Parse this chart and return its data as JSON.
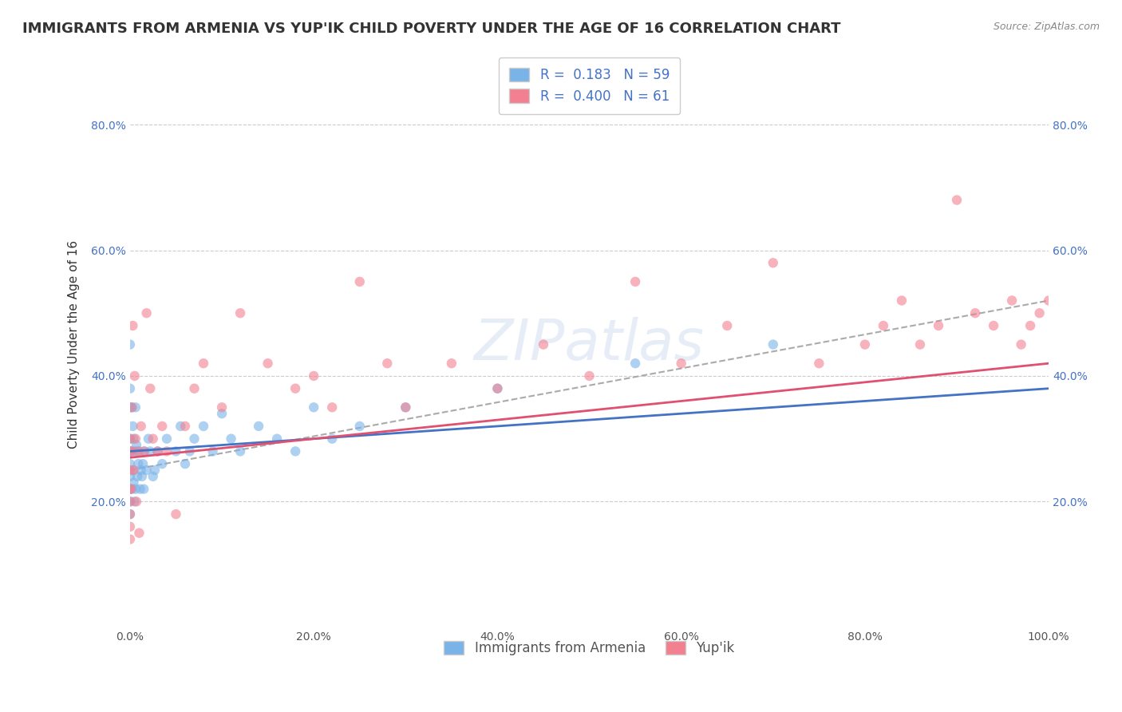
{
  "title": "IMMIGRANTS FROM ARMENIA VS YUP'IK CHILD POVERTY UNDER THE AGE OF 16 CORRELATION CHART",
  "source": "Source: ZipAtlas.com",
  "xlabel_bottom": "",
  "ylabel": "Child Poverty Under the Age of 16",
  "xlim": [
    0.0,
    1.0
  ],
  "ylim": [
    0.0,
    0.9
  ],
  "x_ticks": [
    0.0,
    0.2,
    0.4,
    0.6,
    0.8,
    1.0
  ],
  "x_tick_labels": [
    "0.0%",
    "20.0%",
    "40.0%",
    "60.0%",
    "80.0%",
    "100.0%"
  ],
  "y_ticks": [
    0.2,
    0.4,
    0.6,
    0.8
  ],
  "y_tick_labels": [
    "20.0%",
    "40.0%",
    "60.0%",
    "80.0%"
  ],
  "legend_entries": [
    {
      "label": "Immigrants from Armenia",
      "color": "#a8c8f0",
      "R": "0.183",
      "N": "59"
    },
    {
      "label": "Yup'ik",
      "color": "#f4a0b0",
      "R": "0.400",
      "N": "61"
    }
  ],
  "blue_color": "#7ab3e8",
  "pink_color": "#f28090",
  "watermark": "ZIPAtlas",
  "blue_scatter_x": [
    0.0,
    0.0,
    0.0,
    0.0,
    0.0,
    0.0,
    0.0,
    0.0,
    0.0,
    0.0,
    0.002,
    0.002,
    0.002,
    0.003,
    0.003,
    0.004,
    0.004,
    0.005,
    0.005,
    0.006,
    0.006,
    0.007,
    0.008,
    0.009,
    0.01,
    0.011,
    0.012,
    0.013,
    0.014,
    0.015,
    0.016,
    0.018,
    0.02,
    0.022,
    0.025,
    0.027,
    0.03,
    0.035,
    0.04,
    0.05,
    0.055,
    0.06,
    0.065,
    0.07,
    0.08,
    0.09,
    0.1,
    0.11,
    0.12,
    0.14,
    0.16,
    0.18,
    0.2,
    0.22,
    0.25,
    0.3,
    0.4,
    0.55,
    0.7
  ],
  "blue_scatter_y": [
    0.45,
    0.38,
    0.35,
    0.3,
    0.28,
    0.26,
    0.24,
    0.22,
    0.2,
    0.18,
    0.35,
    0.28,
    0.22,
    0.32,
    0.25,
    0.3,
    0.23,
    0.28,
    0.2,
    0.35,
    0.22,
    0.29,
    0.24,
    0.26,
    0.28,
    0.22,
    0.25,
    0.24,
    0.26,
    0.22,
    0.28,
    0.25,
    0.3,
    0.28,
    0.24,
    0.25,
    0.28,
    0.26,
    0.3,
    0.28,
    0.32,
    0.26,
    0.28,
    0.3,
    0.32,
    0.28,
    0.34,
    0.3,
    0.28,
    0.32,
    0.3,
    0.28,
    0.35,
    0.3,
    0.32,
    0.35,
    0.38,
    0.42,
    0.45
  ],
  "pink_scatter_x": [
    0.0,
    0.0,
    0.0,
    0.0,
    0.0,
    0.0,
    0.0,
    0.0,
    0.001,
    0.001,
    0.002,
    0.003,
    0.004,
    0.005,
    0.006,
    0.007,
    0.008,
    0.01,
    0.012,
    0.015,
    0.018,
    0.022,
    0.025,
    0.03,
    0.035,
    0.04,
    0.05,
    0.06,
    0.07,
    0.08,
    0.1,
    0.12,
    0.15,
    0.18,
    0.2,
    0.22,
    0.25,
    0.28,
    0.3,
    0.35,
    0.4,
    0.45,
    0.5,
    0.55,
    0.6,
    0.65,
    0.7,
    0.75,
    0.8,
    0.82,
    0.84,
    0.86,
    0.88,
    0.9,
    0.92,
    0.94,
    0.96,
    0.97,
    0.98,
    0.99,
    1.0
  ],
  "pink_scatter_y": [
    0.3,
    0.28,
    0.25,
    0.22,
    0.2,
    0.18,
    0.16,
    0.14,
    0.28,
    0.22,
    0.35,
    0.48,
    0.25,
    0.4,
    0.3,
    0.2,
    0.28,
    0.15,
    0.32,
    0.28,
    0.5,
    0.38,
    0.3,
    0.28,
    0.32,
    0.28,
    0.18,
    0.32,
    0.38,
    0.42,
    0.35,
    0.5,
    0.42,
    0.38,
    0.4,
    0.35,
    0.55,
    0.42,
    0.35,
    0.42,
    0.38,
    0.45,
    0.4,
    0.55,
    0.42,
    0.48,
    0.58,
    0.42,
    0.45,
    0.48,
    0.52,
    0.45,
    0.48,
    0.68,
    0.5,
    0.48,
    0.52,
    0.45,
    0.48,
    0.5,
    0.52
  ],
  "blue_line_x": [
    0.0,
    1.0
  ],
  "blue_line_y": [
    0.28,
    0.38
  ],
  "pink_line_x": [
    0.0,
    1.0
  ],
  "pink_line_y": [
    0.27,
    0.42
  ],
  "grid_color": "#cccccc",
  "bg_color": "#ffffff",
  "title_fontsize": 13,
  "label_fontsize": 11,
  "tick_fontsize": 10,
  "legend_fontsize": 12
}
